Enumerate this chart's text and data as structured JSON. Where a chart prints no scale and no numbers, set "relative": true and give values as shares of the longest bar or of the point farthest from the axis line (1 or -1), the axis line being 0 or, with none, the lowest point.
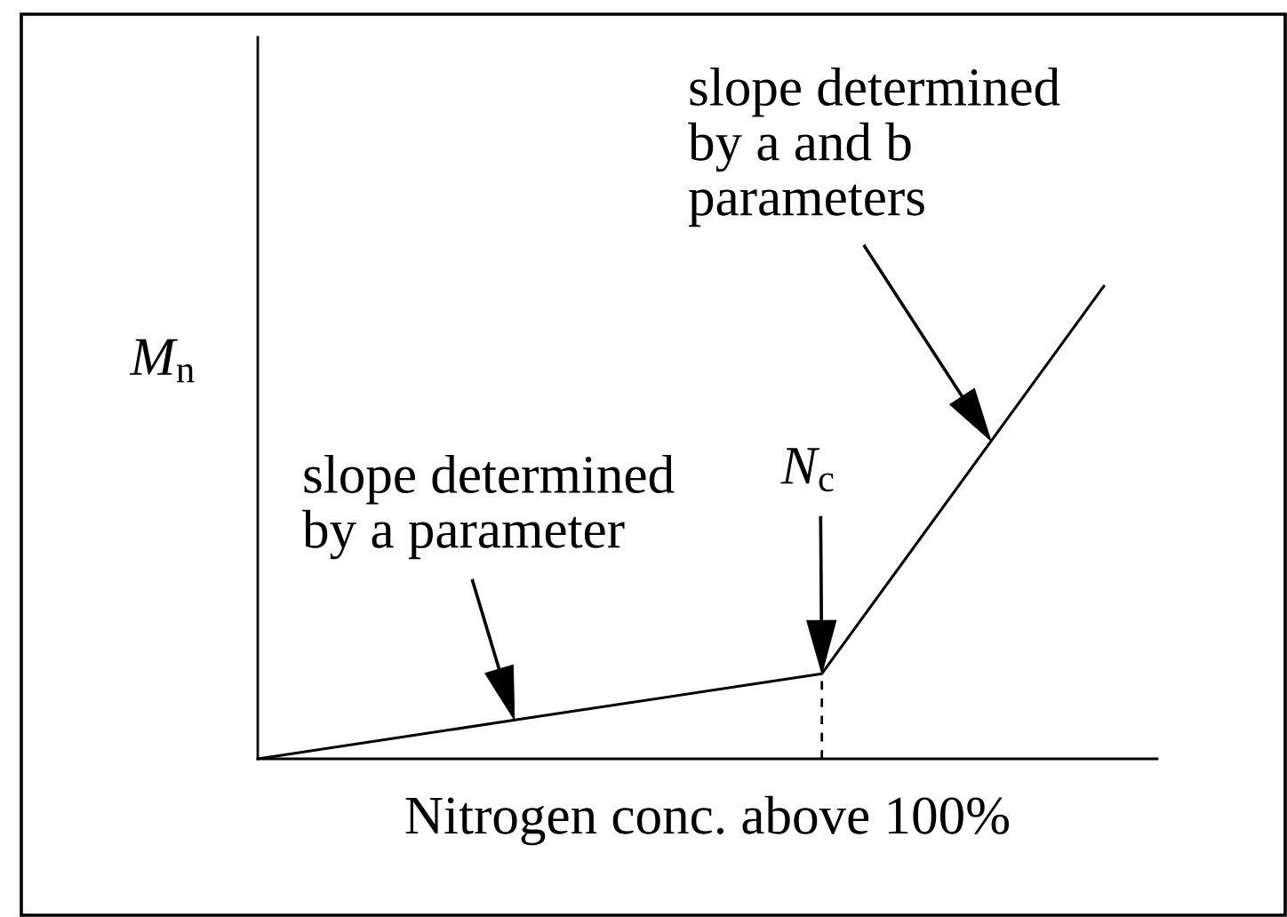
{
  "chart_data": {
    "type": "line",
    "relative": true,
    "xlabel": "Nitrogen conc. above 100%",
    "ylabel": "M$_{n}$",
    "categories": [
      null,
      null,
      null,
      null
    ],
    "series": [
      {
        "color": "#000000",
        "values": [
          0,
          0.09,
          0.18,
          1
        ]
      }
    ],
    "marker": "none",
    "line_style": "solid",
    "tick_labels": false,
    "annotations": [
      "slope determined\nby a parameter",
      "slope determined\nby a and b\nparameters",
      "N$_{c}$"
    ]
  }
}
